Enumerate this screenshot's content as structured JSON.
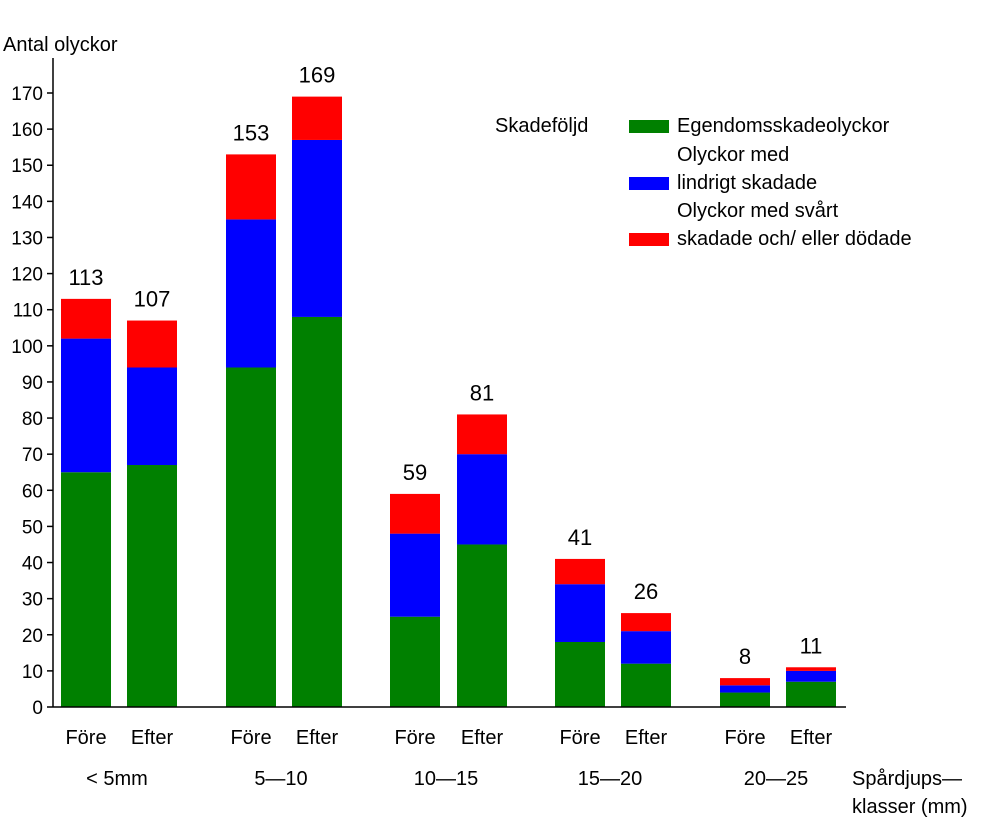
{
  "chart_data": {
    "type": "bar",
    "stacked": true,
    "ylabel": "Antal olyckor",
    "xlabel_lines": [
      "Spårdjups—",
      "klasser (mm)"
    ],
    "ylim": [
      0,
      170
    ],
    "yticks": [
      0,
      10,
      20,
      30,
      40,
      50,
      60,
      70,
      80,
      90,
      100,
      110,
      120,
      130,
      140,
      150,
      160,
      170
    ],
    "grid": false,
    "groups": [
      "<  5mm",
      "5—10",
      "10—15",
      "15—20",
      "20—25"
    ],
    "categories": [
      "Före",
      "Efter",
      "Före",
      "Efter",
      "Före",
      "Efter",
      "Före",
      "Efter",
      "Före",
      "Efter"
    ],
    "totals": [
      113,
      107,
      153,
      169,
      59,
      81,
      41,
      26,
      8,
      11
    ],
    "legend_title": "Skadeföljd",
    "legend_position": "top-right",
    "series": [
      {
        "name": "Egendomsskadeolyckor",
        "color": "#008000",
        "values": [
          65,
          67,
          94,
          108,
          25,
          45,
          18,
          12,
          4,
          7
        ]
      },
      {
        "name_lines": [
          "Olyckor med",
          "lindrigt skadade"
        ],
        "color": "#0000ff",
        "values": [
          37,
          27,
          41,
          49,
          23,
          25,
          16,
          9,
          2,
          3
        ]
      },
      {
        "name_lines": [
          "Olyckor med svårt",
          "skadade och/ eller dödade"
        ],
        "color": "#ff0000",
        "values": [
          11,
          13,
          18,
          12,
          11,
          11,
          7,
          5,
          2,
          1
        ]
      }
    ]
  }
}
